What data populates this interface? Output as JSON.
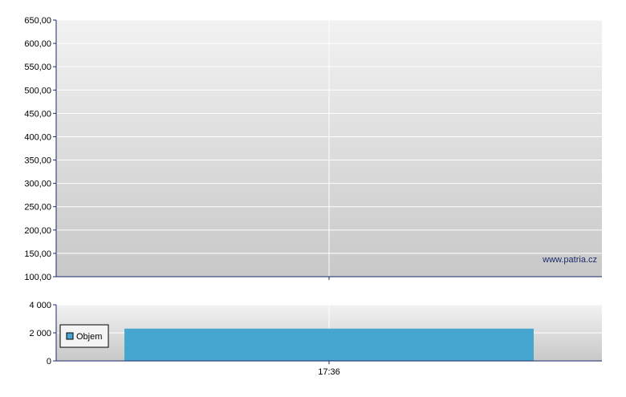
{
  "watermark": "www.patria.cz",
  "colors": {
    "plot_top": "#f2f2f2",
    "plot_bottom": "#c8c8c8",
    "grid": "#ffffff",
    "axis": "#1a2a6c",
    "bar": "#46a6cf",
    "watermark": "#1a2a6c"
  },
  "chart_data": [
    {
      "type": "line",
      "title": "",
      "xlabel": "",
      "ylabel": "",
      "ylim": [
        100,
        650
      ],
      "y_ticks": [
        "100,00",
        "150,00",
        "200,00",
        "250,00",
        "300,00",
        "350,00",
        "400,00",
        "450,00",
        "500,00",
        "550,00",
        "600,00",
        "650,00"
      ],
      "y_tick_values": [
        100,
        150,
        200,
        250,
        300,
        350,
        400,
        450,
        500,
        550,
        600,
        650
      ],
      "x_ticks": [],
      "series": [],
      "grid": true
    },
    {
      "type": "bar",
      "title": "",
      "xlabel": "",
      "ylabel": "",
      "ylim": [
        0,
        4000
      ],
      "y_ticks": [
        "0",
        "2 000",
        "4 000"
      ],
      "y_tick_values": [
        0,
        2000,
        4000
      ],
      "categories": [
        "17:36"
      ],
      "series": [
        {
          "name": "Objem",
          "values": [
            2300
          ]
        }
      ],
      "legend": {
        "entries": [
          "Objem"
        ],
        "placement": "left"
      },
      "grid": true
    }
  ]
}
